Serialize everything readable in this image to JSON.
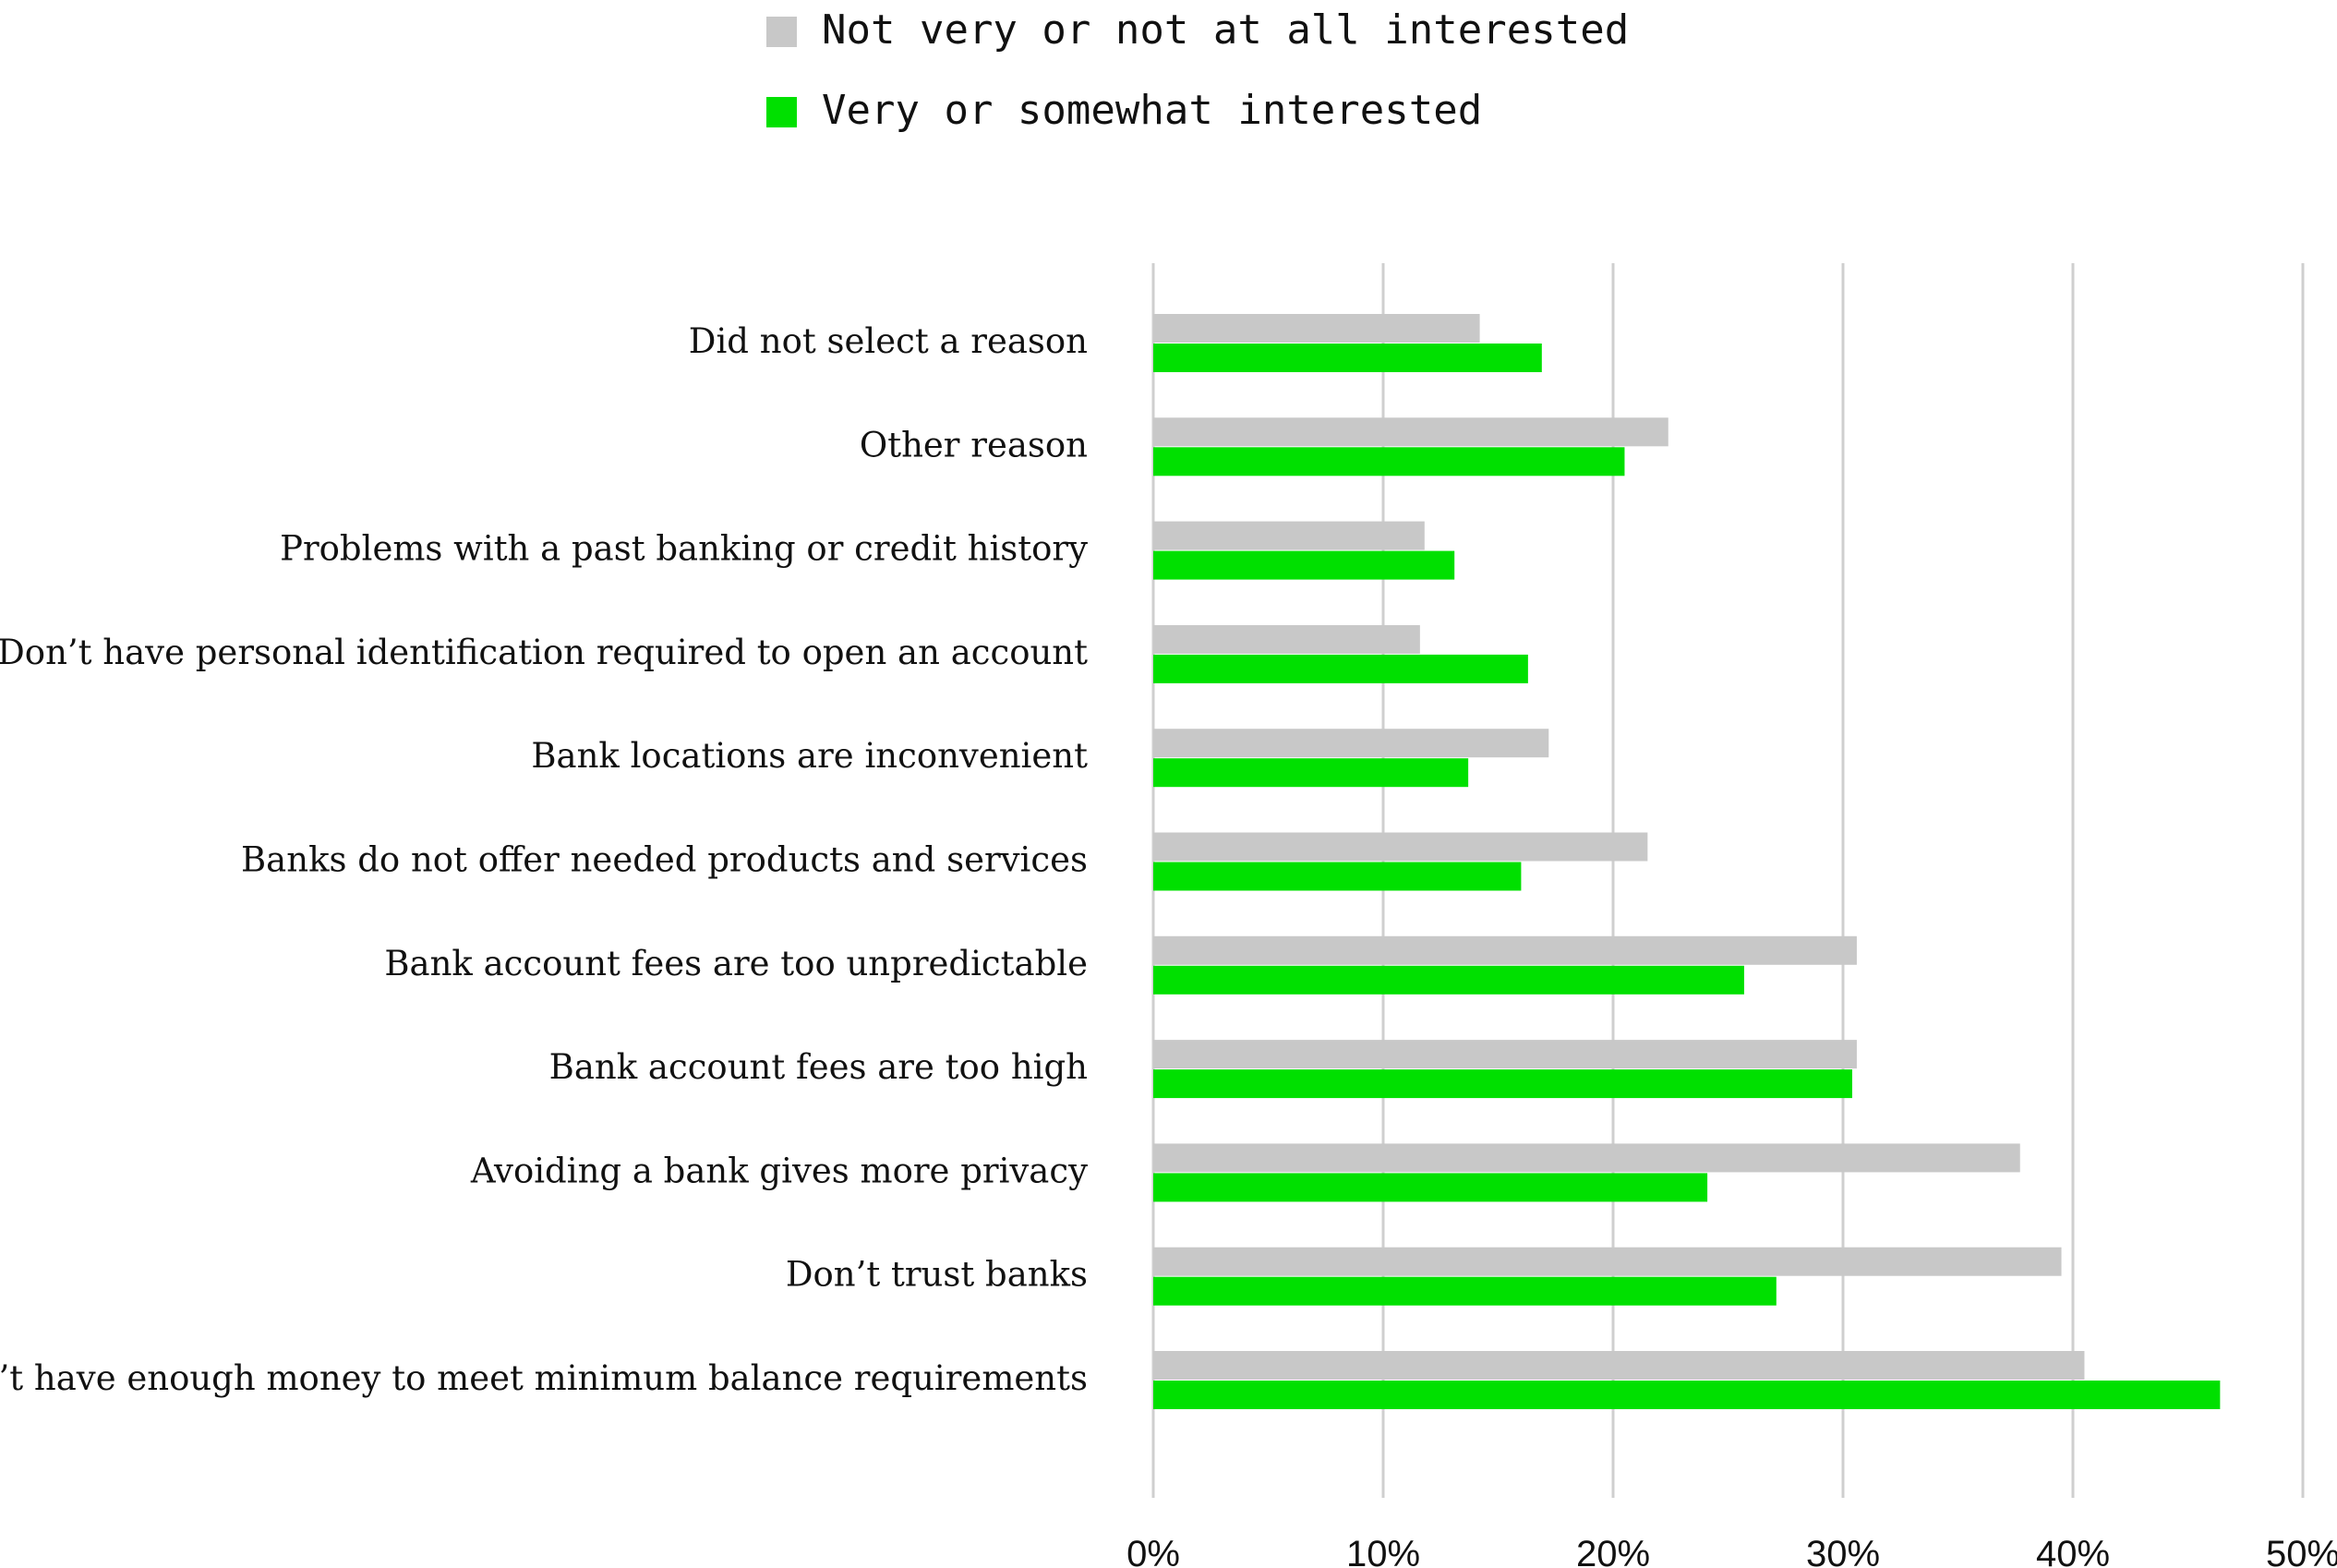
{
  "chart_data": {
    "type": "bar",
    "orientation": "horizontal",
    "categories": [
      "Did not select a reason",
      "Other reason",
      "Problems with a past banking or credit history",
      "Don’t have personal identification required to open an account",
      "Bank locations are inconvenient",
      "Banks do not offer needed products and services",
      "Bank account fees are too unpredictable",
      "Bank account fees are too high",
      "Avoiding a bank gives more privacy",
      "Don’t trust banks",
      "Don’t have enough money to meet minimum balance requirements"
    ],
    "series": [
      {
        "name": "Not very or not at all interested",
        "color": "#c8c8c8",
        "values": [
          14.2,
          22.4,
          11.8,
          11.6,
          17.2,
          21.5,
          30.6,
          30.6,
          37.7,
          39.5,
          40.5
        ]
      },
      {
        "name": "Very or somewhat interested",
        "color": "#00e000",
        "values": [
          16.9,
          20.5,
          13.1,
          16.3,
          13.7,
          16.0,
          25.7,
          30.4,
          24.1,
          27.1,
          46.4
        ]
      }
    ],
    "xlim": [
      0,
      50
    ],
    "xticks": [
      0,
      10,
      20,
      30,
      40,
      50
    ],
    "tick_suffix": "%",
    "grid": true,
    "legend_position": "top"
  }
}
